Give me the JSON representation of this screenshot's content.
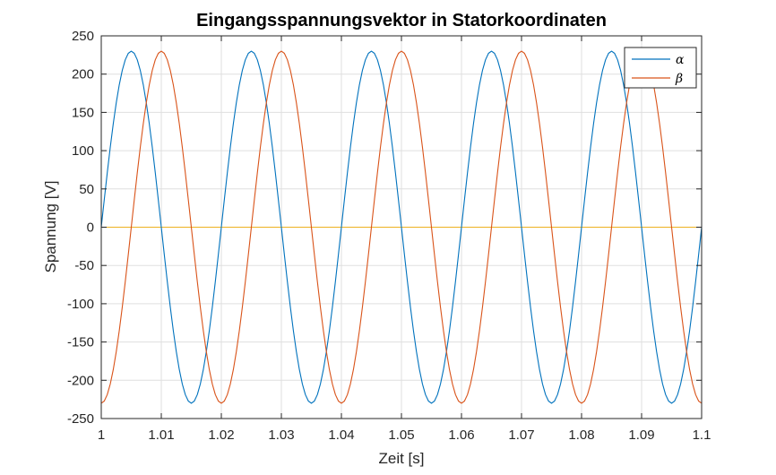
{
  "chart_data": {
    "type": "line",
    "title": "Eingangsspannungsvektor in Statorkoordinaten",
    "xlabel": "Zeit [s]",
    "ylabel": "Spannung [V]",
    "xlim": [
      1,
      1.1
    ],
    "ylim": [
      -250,
      250
    ],
    "x_ticks": [
      "1",
      "1.01",
      "1.02",
      "1.03",
      "1.04",
      "1.05",
      "1.06",
      "1.07",
      "1.08",
      "1.09",
      "1.1"
    ],
    "y_ticks": [
      "250",
      "200",
      "150",
      "100",
      "50",
      "0",
      "-50",
      "-100",
      "-150",
      "-200",
      "-250"
    ],
    "grid": true,
    "legend_position": "top-right",
    "series": [
      {
        "name": "α",
        "color": "#0072BD",
        "amplitude": 230,
        "frequency_hz": 50,
        "phase_deg": 0,
        "sample_step": 0.0005,
        "t_start": 1.0,
        "t_end": 1.1
      },
      {
        "name": "β",
        "color": "#D95319",
        "amplitude": 230,
        "frequency_hz": 50,
        "phase_deg": -90,
        "sample_step": 0.0005,
        "t_start": 1.0,
        "t_end": 1.1
      },
      {
        "name": "",
        "color": "#EDB120",
        "amplitude": 0,
        "frequency_hz": 0,
        "phase_deg": 0,
        "sample_step": 0.0005,
        "t_start": 1.0,
        "t_end": 1.1
      }
    ]
  }
}
